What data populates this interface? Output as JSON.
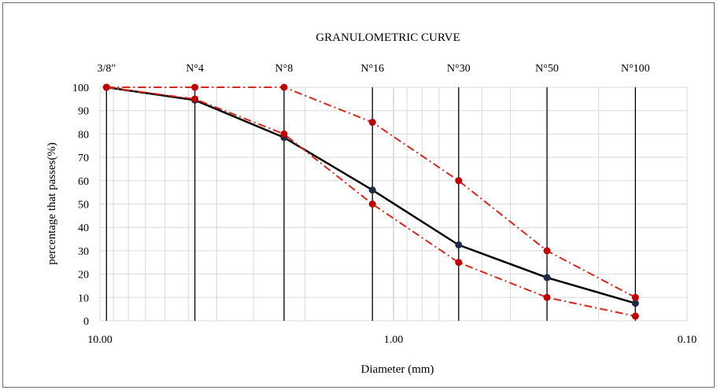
{
  "chart_data": {
    "type": "line",
    "title": "GRANULOMETRIC CURVE",
    "xlabel": "Diameter (mm)",
    "ylabel": "percentage that passes(%)",
    "x_scale": "log",
    "x_reversed": true,
    "xlim": [
      10.0,
      0.1
    ],
    "ylim": [
      0,
      100
    ],
    "y_ticks": [
      0,
      10,
      20,
      30,
      40,
      50,
      60,
      70,
      80,
      90,
      100
    ],
    "x_tick_labels": [
      "10.00",
      "1.00",
      "0.10"
    ],
    "x_tick_values": [
      10.0,
      1.0,
      0.1
    ],
    "sieves": [
      {
        "name": "3/8\"",
        "diameter": 9.5
      },
      {
        "name": "N°4",
        "diameter": 4.75
      },
      {
        "name": "N°8",
        "diameter": 2.36
      },
      {
        "name": "N°16",
        "diameter": 1.18
      },
      {
        "name": "N°30",
        "diameter": 0.6
      },
      {
        "name": "N°50",
        "diameter": 0.3
      },
      {
        "name": "N°100",
        "diameter": 0.15
      }
    ],
    "grid": true,
    "series": [
      {
        "style": "solid",
        "color": "#000000",
        "marker_color": "#1f2a44",
        "x": [
          9.5,
          4.75,
          2.36,
          1.18,
          0.6,
          0.3,
          0.15
        ],
        "y": [
          100,
          94.5,
          78.5,
          56,
          32.5,
          18.5,
          7.5
        ]
      },
      {
        "style": "dash-dot",
        "color": "#d9261c",
        "marker_color": "#c00000",
        "x": [
          9.5,
          4.75,
          2.36,
          1.18,
          0.6,
          0.3,
          0.15
        ],
        "y": [
          100,
          100,
          100,
          85,
          60,
          30,
          10
        ]
      },
      {
        "style": "dash-dot",
        "color": "#d9261c",
        "marker_color": "#c00000",
        "x": [
          9.5,
          4.75,
          2.36,
          1.18,
          0.6,
          0.3,
          0.15
        ],
        "y": [
          100,
          95,
          80,
          50,
          25,
          10,
          2
        ]
      }
    ]
  }
}
